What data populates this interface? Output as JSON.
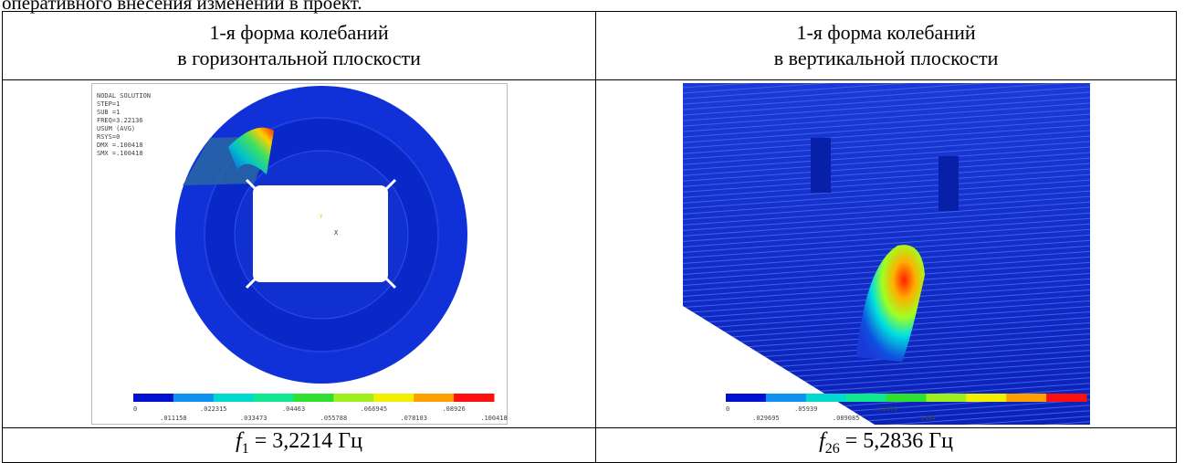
{
  "intro_text": "оперативного внесения изменений в проект.",
  "table": {
    "headers": [
      [
        "1-я форма колебаний",
        "в горизонтальной плоскости"
      ],
      [
        "1-я форма колебаний",
        "в вертикальной плоскости"
      ]
    ],
    "images": [
      {
        "info": [
          "NODAL SOLUTION",
          "STEP=1",
          "SUB =1",
          "FREQ=3.22136",
          "USUM      (AVG)",
          "RSYS=0",
          "DMX =.100418",
          "SMX =.100418"
        ],
        "axis_labels": [
          "Y",
          "X"
        ],
        "colorbar_labels": [
          "0",
          ".011158",
          ".022315",
          ".033473",
          ".04463",
          ".055788",
          ".066945",
          ".078103",
          ".08926",
          ".100418"
        ]
      },
      {
        "colorbar_labels": [
          "0",
          ".029695",
          ".05939",
          ".089085",
          ".11878",
          ".1484"
        ]
      }
    ],
    "formulas": [
      {
        "symbol": "f",
        "subscript": "1",
        "value": "= 3,2214 Гц"
      },
      {
        "symbol": "f",
        "subscript": "26",
        "value": "= 5,2836 Гц"
      }
    ]
  }
}
